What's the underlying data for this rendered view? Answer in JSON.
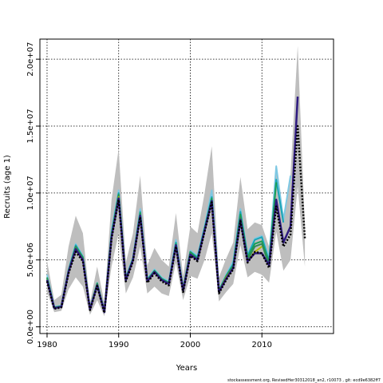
{
  "chart_data": {
    "type": "line",
    "title": "",
    "xlabel": "Years",
    "ylabel": "Recruits (age 1)",
    "xlim": [
      1979,
      2020
    ],
    "ylim": [
      -500000,
      21500000
    ],
    "x_ticks": [
      1980,
      1990,
      2000,
      2010
    ],
    "x_tick_labels": [
      "1980",
      "1990",
      "2000",
      "2010"
    ],
    "y_ticks": [
      0,
      5000000,
      10000000,
      15000000,
      20000000
    ],
    "y_tick_labels": [
      "0.0e+00",
      "5.0e+06",
      "1.0e+07",
      "1.5e+07",
      "2.0e+07"
    ],
    "grid": true,
    "footnote": "stockassessment.org, RevisedHer30312018_an2, r10073 , git: ecd9e6382ff7",
    "x": [
      1980,
      1981,
      1982,
      1983,
      1984,
      1985,
      1986,
      1987,
      1988,
      1989,
      1990,
      1991,
      1992,
      1993,
      1994,
      1995,
      1996,
      1997,
      1998,
      1999,
      2000,
      2001,
      2002,
      2003,
      2004,
      2005,
      2006,
      2007,
      2008,
      2009,
      2010,
      2011,
      2012,
      2013,
      2014,
      2015,
      2016
    ],
    "band": {
      "lower": [
        2600000,
        1100000,
        1200000,
        2800000,
        3700000,
        3000000,
        900000,
        2000000,
        800000,
        4500000,
        7000000,
        2500000,
        3700000,
        6000000,
        2500000,
        3000000,
        2500000,
        2300000,
        4800000,
        2000000,
        3800000,
        3600000,
        5000000,
        7000000,
        1900000,
        2600000,
        3200000,
        6100000,
        3700000,
        4100000,
        3900000,
        3300000,
        7100000,
        4200000,
        5000000,
        10500000,
        4500000
      ],
      "upper": [
        4900000,
        2000000,
        2400000,
        6000000,
        8300000,
        7000000,
        1800000,
        4500000,
        1800000,
        9500000,
        13300000,
        4800000,
        7000000,
        11300000,
        4600000,
        5900000,
        5000000,
        4500000,
        8500000,
        3800000,
        7500000,
        7000000,
        10000000,
        13500000,
        3700000,
        5100000,
        6300000,
        11200000,
        7300000,
        7800000,
        7600000,
        6000000,
        12000000,
        8200000,
        11400000,
        21000000,
        7500000
      ]
    },
    "series": [
      {
        "values": [
          3900000,
          1500000,
          1600000,
          4300000,
          6200000,
          5300000,
          1400000,
          3300000,
          1200000,
          7200000,
          10200000,
          3700000,
          5200000,
          8800000,
          3600000,
          4300000,
          3700000,
          3400000,
          6500000,
          2900000,
          5700000,
          5300000,
          7500000,
          10200000,
          2800000,
          3900000,
          4900000,
          8800000,
          5400000,
          6600000,
          6800000,
          5200000,
          12000000,
          8000000,
          11300000,
          null,
          null
        ]
      },
      {
        "values": [
          3600000,
          1450000,
          1550000,
          4200000,
          6100000,
          5200000,
          1350000,
          3250000,
          1150000,
          7000000,
          10000000,
          3600000,
          5100000,
          8600000,
          3500000,
          4200000,
          3600000,
          3300000,
          6300000,
          2800000,
          5600000,
          5200000,
          7400000,
          9700000,
          2700000,
          3800000,
          4700000,
          8600000,
          5300000,
          6500000,
          6700000,
          4900000,
          11000000,
          7800000,
          null,
          null,
          null
        ]
      },
      {
        "values": [
          3700000,
          1450000,
          1550000,
          4200000,
          6000000,
          5200000,
          1350000,
          3250000,
          1150000,
          6900000,
          9900000,
          3600000,
          5100000,
          8500000,
          3500000,
          4200000,
          3600000,
          3300000,
          6200000,
          2800000,
          5600000,
          5100000,
          7300000,
          9600000,
          2700000,
          3800000,
          4600000,
          8400000,
          5200000,
          6200000,
          6400000,
          4800000,
          10800000,
          null,
          null,
          null,
          null
        ]
      },
      {
        "values": [
          3600000,
          1400000,
          1500000,
          4100000,
          6000000,
          5100000,
          1300000,
          3200000,
          1100000,
          6800000,
          9800000,
          3500000,
          5000000,
          8400000,
          3400000,
          4100000,
          3500000,
          3200000,
          6100000,
          2700000,
          5500000,
          5000000,
          7200000,
          9400000,
          2600000,
          3700000,
          4500000,
          8200000,
          5000000,
          6000000,
          6200000,
          4600000,
          null,
          null,
          null,
          null,
          null
        ]
      },
      {
        "values": [
          3500000,
          1400000,
          1500000,
          4100000,
          5800000,
          5000000,
          1300000,
          3100000,
          1100000,
          6700000,
          9700000,
          3500000,
          5000000,
          8300000,
          3400000,
          4100000,
          3500000,
          3200000,
          6100000,
          2700000,
          5400000,
          5000000,
          7200000,
          9400000,
          2600000,
          3700000,
          4400000,
          8000000,
          4900000,
          5600000,
          6000000,
          null,
          null,
          null,
          null,
          null,
          null
        ]
      },
      {
        "values": [
          3500000,
          1400000,
          1500000,
          4100000,
          5800000,
          5000000,
          1300000,
          3100000,
          1100000,
          6700000,
          9600000,
          3500000,
          5000000,
          8300000,
          3400000,
          4100000,
          3500000,
          3200000,
          6100000,
          2700000,
          5400000,
          5000000,
          7200000,
          9400000,
          2600000,
          3600000,
          4400000,
          8000000,
          4900000,
          5500000,
          5500000,
          4600000,
          9500000,
          6300000,
          7500000,
          17200000,
          null
        ]
      },
      {
        "values": [
          3400000,
          1350000,
          1450000,
          4000000,
          5600000,
          4900000,
          1250000,
          3050000,
          1050000,
          6600000,
          9500000,
          3400000,
          4900000,
          8200000,
          3300000,
          4000000,
          3400000,
          3100000,
          6000000,
          2600000,
          5300000,
          4900000,
          7100000,
          9300000,
          2500000,
          3500000,
          4300000,
          7900000,
          4800000,
          5600000,
          5500000,
          4400000,
          9000000,
          6000000,
          6900000,
          15000000,
          6600000
        ]
      }
    ],
    "styles": {
      "band_color": "#bebebe",
      "series_colors": [
        "#7ec8e3",
        "#1aa6b7",
        "#1a9e55",
        "#2e8b57",
        "#b8b800",
        "#2e1a80",
        "#000000"
      ]
    }
  }
}
